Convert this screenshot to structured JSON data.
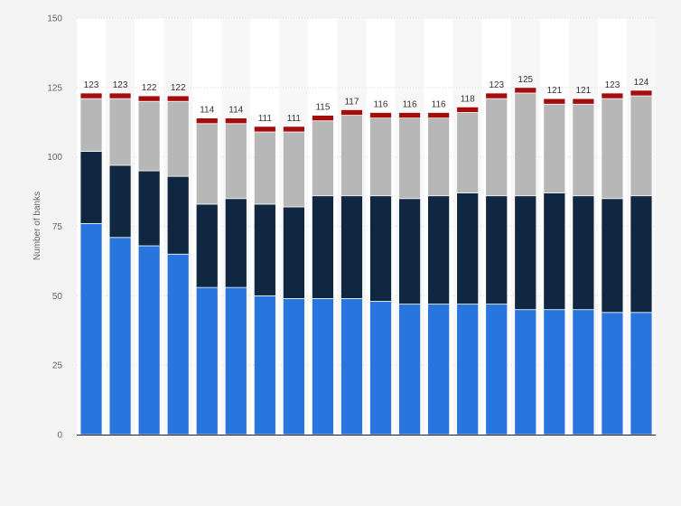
{
  "chart_data": {
    "type": "bar",
    "stacked": true,
    "ylabel": "Number of banks",
    "ylim": [
      0,
      150
    ],
    "yticks": [
      0,
      25,
      50,
      75,
      100,
      125,
      150
    ],
    "grid": true,
    "legend": "none",
    "totals": [
      123,
      123,
      122,
      122,
      114,
      114,
      111,
      111,
      115,
      117,
      116,
      116,
      116,
      118,
      123,
      125,
      121,
      121,
      123,
      124
    ],
    "series": [
      {
        "color": "#2876dd",
        "values": [
          76,
          71,
          68,
          65,
          53,
          53,
          50,
          49,
          49,
          49,
          48,
          47,
          47,
          47,
          47,
          45,
          45,
          45,
          44,
          44
        ]
      },
      {
        "color": "#0f2740",
        "values": [
          26,
          26,
          27,
          28,
          30,
          32,
          33,
          33,
          37,
          37,
          38,
          38,
          39,
          40,
          39,
          41,
          42,
          41,
          41,
          42
        ]
      },
      {
        "color": "#b7b7b7",
        "values": [
          19,
          24,
          25,
          27,
          29,
          27,
          26,
          27,
          27,
          29,
          28,
          29,
          28,
          29,
          35,
          37,
          32,
          33,
          36,
          36
        ]
      },
      {
        "color": "#a30d0d",
        "values": [
          2,
          2,
          2,
          2,
          2,
          2,
          2,
          2,
          2,
          2,
          2,
          2,
          2,
          2,
          2,
          2,
          2,
          2,
          2,
          2
        ]
      }
    ]
  }
}
